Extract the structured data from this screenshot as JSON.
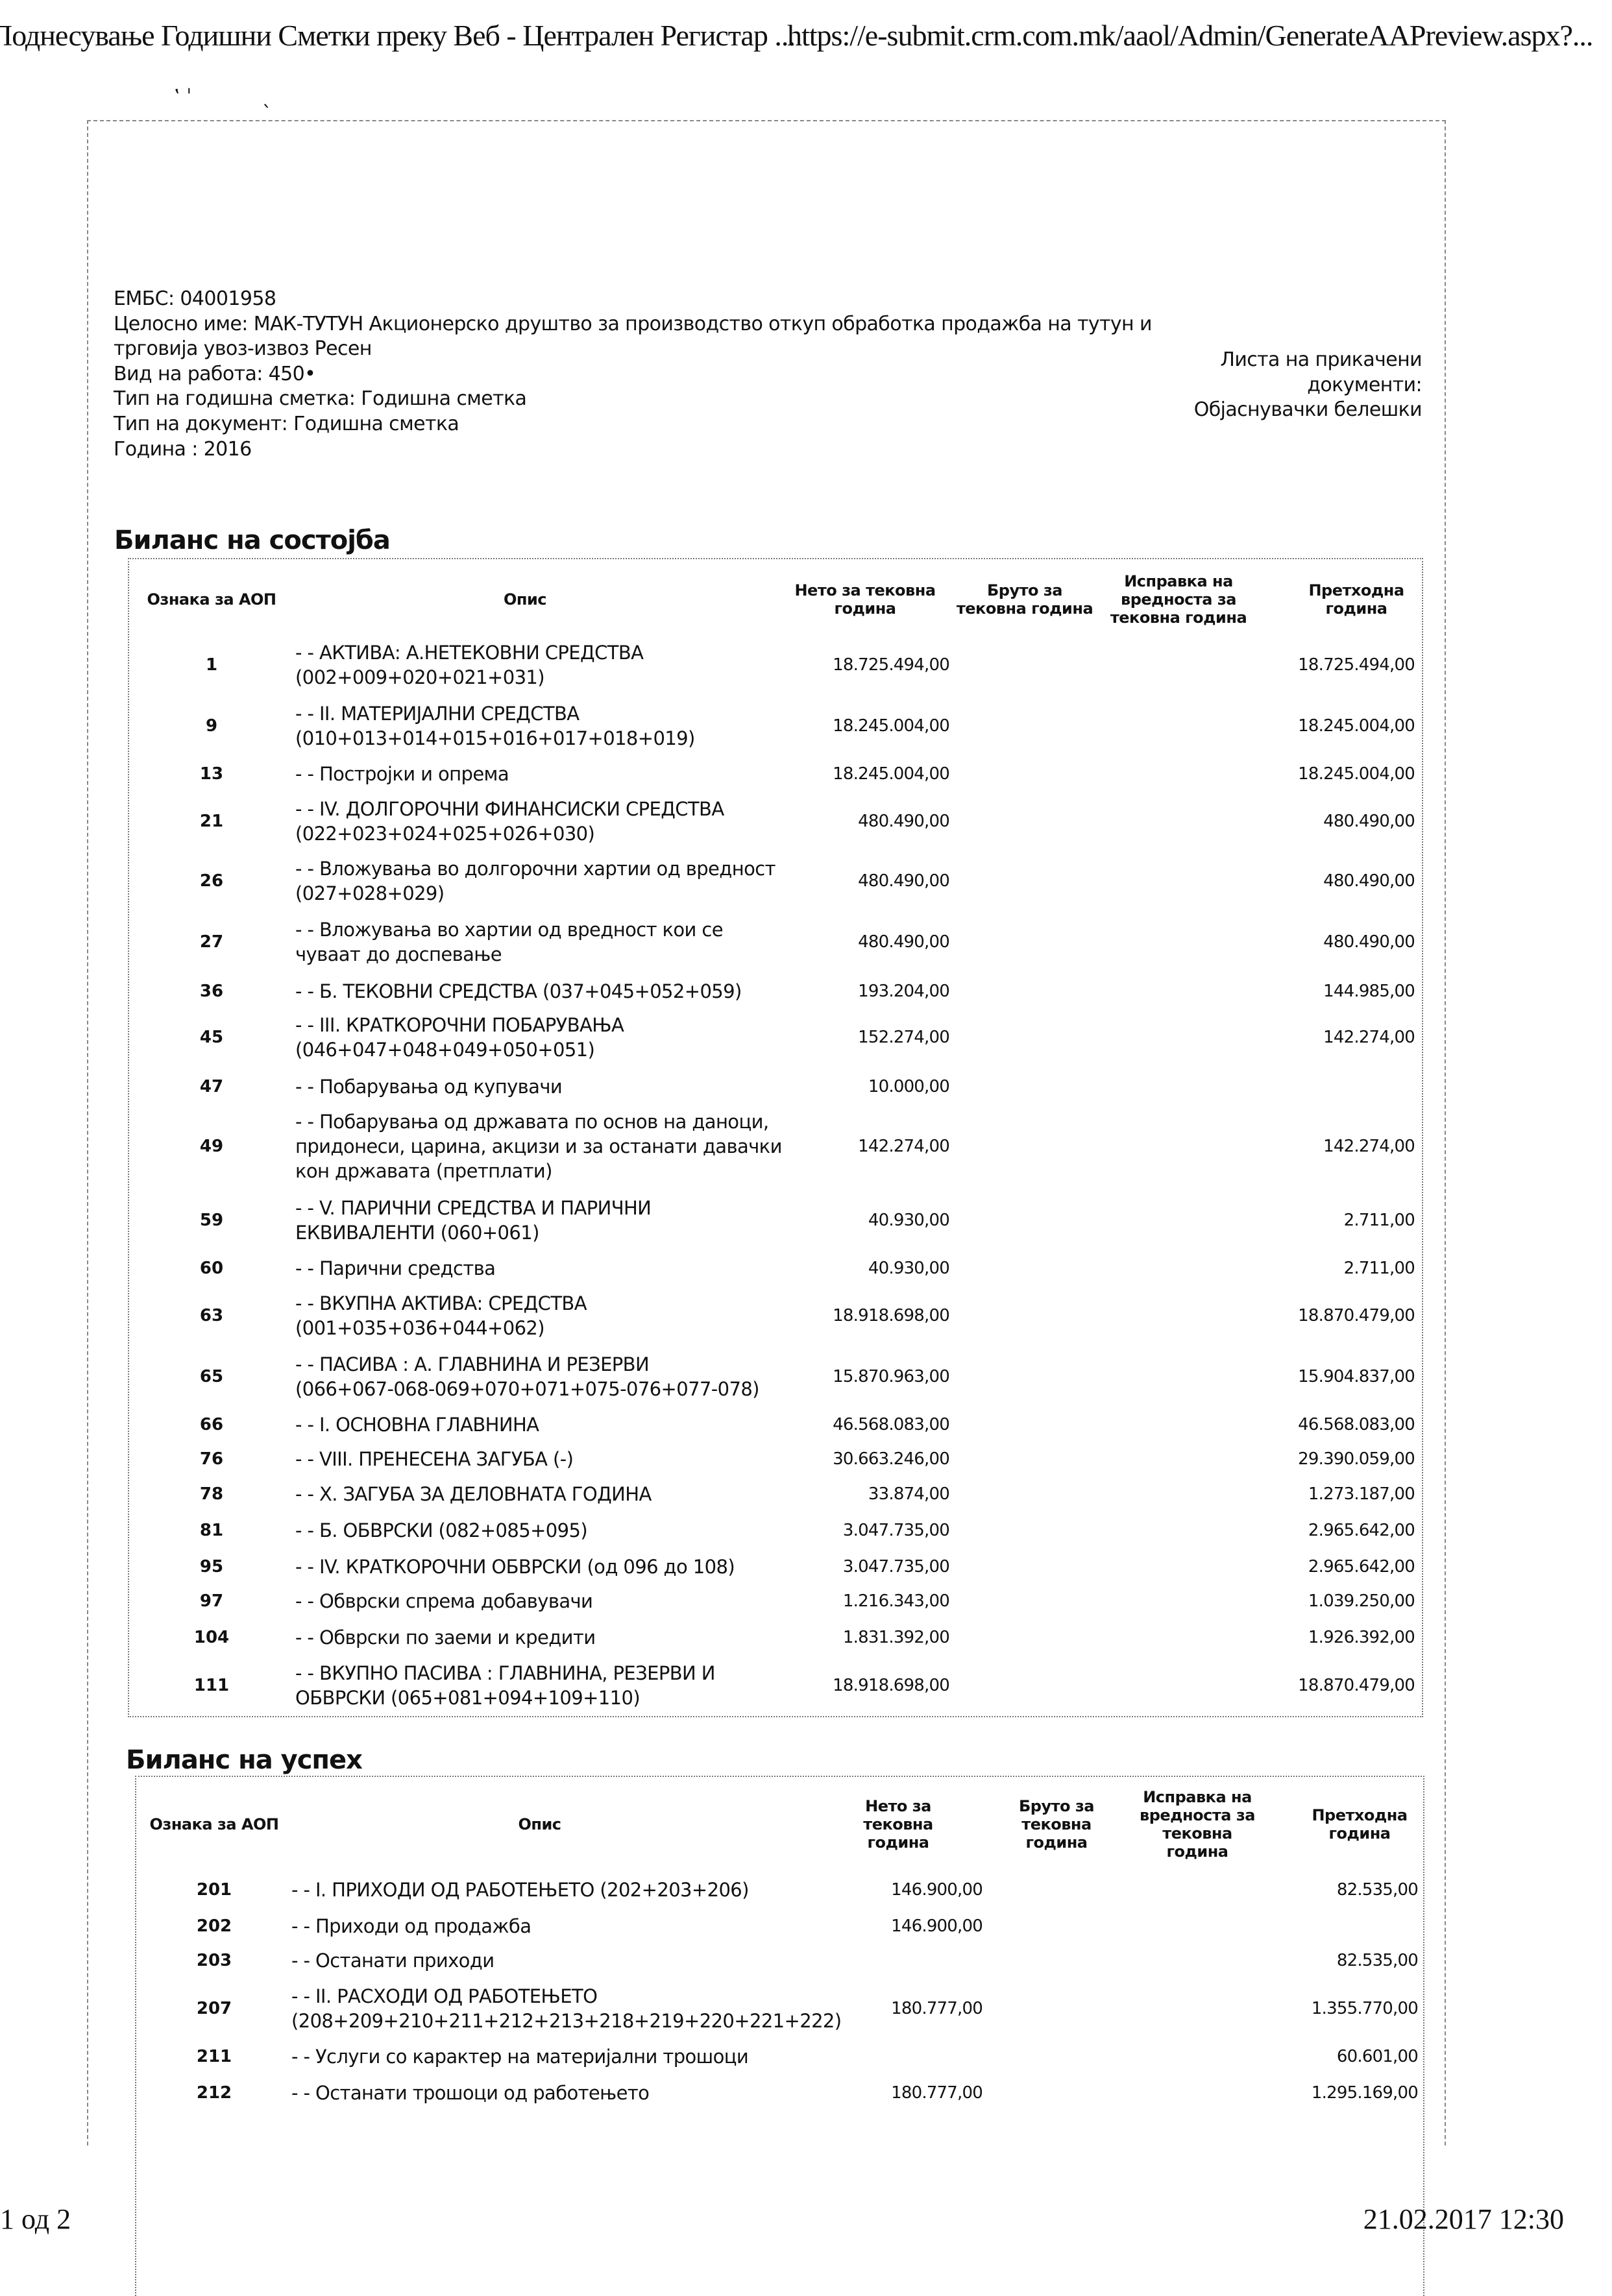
{
  "header": {
    "title": "Поднесување Годишни Сметки преку Веб - Централен Регистар ...",
    "url": "https://e-submit.crm.com.mk/aaol/Admin/GenerateAAPreview.aspx?..."
  },
  "info": {
    "embs": "ЕМБС: 04001958",
    "full_name_line1": "Целосно име: МАК-ТУТУН Акционерско друштво за производство откуп обработка продажба на тутун и",
    "full_name_line2": "трговија увоз-извоз Ресен",
    "activity": "Вид на работа: 450•",
    "account_type": "Тип на годишна сметка: Годишна сметка",
    "document_type": "Тип на документ: Годишна сметка",
    "year": "Година : 2016"
  },
  "attachments": {
    "label_line1": "Листа на прикачени",
    "label_line2": "документи:",
    "item": "Објаснувачки белешки"
  },
  "balance_sheet": {
    "title": "Биланс на состојба",
    "columns": [
      "Ознака за АОП",
      "Опис",
      "Нето за тековна\nгодина",
      "Бруто за\nтековна година",
      "Исправка на\nвредноста за\nтековна година",
      "Претходна\nгодина"
    ],
    "rows": [
      {
        "aop": "1",
        "opis": "- - АКТИВА: А.НЕТЕКОВНИ СРЕДСТВА\n(002+009+020+021+031)",
        "neto": "18.725.494,00",
        "bruto": "",
        "ispravka": "",
        "prethodna": "18.725.494,00"
      },
      {
        "aop": "9",
        "opis": "- - II. МАТЕРИЈАЛНИ СРЕДСТВА\n(010+013+014+015+016+017+018+019)",
        "neto": "18.245.004,00",
        "bruto": "",
        "ispravka": "",
        "prethodna": "18.245.004,00"
      },
      {
        "aop": "13",
        "opis": "- - Постројки и опрема",
        "neto": "18.245.004,00",
        "bruto": "",
        "ispravka": "",
        "prethodna": "18.245.004,00"
      },
      {
        "aop": "21",
        "opis": "- - IV. ДОЛГОРОЧНИ ФИНАНСИСКИ СРЕДСТВА\n(022+023+024+025+026+030)",
        "neto": "480.490,00",
        "bruto": "",
        "ispravka": "",
        "prethodna": "480.490,00"
      },
      {
        "aop": "26",
        "opis": "- - Вложувања во долгорочни хартии од вредност\n(027+028+029)",
        "neto": "480.490,00",
        "bruto": "",
        "ispravka": "",
        "prethodna": "480.490,00"
      },
      {
        "aop": "27",
        "opis": "- - Вложувања во хартии од вредност кои се\nчуваат до доспевање",
        "neto": "480.490,00",
        "bruto": "",
        "ispravka": "",
        "prethodna": "480.490,00"
      },
      {
        "aop": "36",
        "opis": "- - Б. ТЕКОВНИ СРЕДСТВА (037+045+052+059)",
        "neto": "193.204,00",
        "bruto": "",
        "ispravka": "",
        "prethodna": "144.985,00"
      },
      {
        "aop": "45",
        "opis": "- - III. КРАТКОРОЧНИ ПОБАРУВАЊА\n(046+047+048+049+050+051)",
        "neto": "152.274,00",
        "bruto": "",
        "ispravka": "",
        "prethodna": "142.274,00"
      },
      {
        "aop": "47",
        "opis": "- - Побарувања од купувачи",
        "neto": "10.000,00",
        "bruto": "",
        "ispravka": "",
        "prethodna": ""
      },
      {
        "aop": "49",
        "opis": "- - Побарувања од државата по основ на даноци,\nпридонеси, царина, акцизи и за останати давачки\nкон државата (претплати)",
        "neto": "142.274,00",
        "bruto": "",
        "ispravka": "",
        "prethodna": "142.274,00"
      },
      {
        "aop": "59",
        "opis": "- - V. ПАРИЧНИ СРЕДСТВА И ПАРИЧНИ\nЕКВИВАЛЕНТИ (060+061)",
        "neto": "40.930,00",
        "bruto": "",
        "ispravka": "",
        "prethodna": "2.711,00"
      },
      {
        "aop": "60",
        "opis": "- - Парични средства",
        "neto": "40.930,00",
        "bruto": "",
        "ispravka": "",
        "prethodna": "2.711,00"
      },
      {
        "aop": "63",
        "opis": "- - ВКУПНА АКТИВА: СРЕДСТВА\n(001+035+036+044+062)",
        "neto": "18.918.698,00",
        "bruto": "",
        "ispravka": "",
        "prethodna": "18.870.479,00"
      },
      {
        "aop": "65",
        "opis": "- - ПАСИВА : А. ГЛАВНИНА И РЕЗЕРВИ\n(066+067-068-069+070+071+075-076+077-078)",
        "neto": "15.870.963,00",
        "bruto": "",
        "ispravka": "",
        "prethodna": "15.904.837,00"
      },
      {
        "aop": "66",
        "opis": "- - I. ОСНОВНА ГЛАВНИНА",
        "neto": "46.568.083,00",
        "bruto": "",
        "ispravka": "",
        "prethodna": "46.568.083,00"
      },
      {
        "aop": "76",
        "opis": "- - VIII. ПРЕНЕСЕНА ЗАГУБА (-)",
        "neto": "30.663.246,00",
        "bruto": "",
        "ispravka": "",
        "prethodna": "29.390.059,00"
      },
      {
        "aop": "78",
        "opis": "- - X. ЗАГУБА ЗА ДЕЛОВНАТА ГОДИНА",
        "neto": "33.874,00",
        "bruto": "",
        "ispravka": "",
        "prethodna": "1.273.187,00"
      },
      {
        "aop": "81",
        "opis": "- - Б. ОБВРСКИ (082+085+095)",
        "neto": "3.047.735,00",
        "bruto": "",
        "ispravka": "",
        "prethodna": "2.965.642,00"
      },
      {
        "aop": "95",
        "opis": "- - IV. КРАТКОРОЧНИ ОБВРСКИ (од 096 до 108)",
        "neto": "3.047.735,00",
        "bruto": "",
        "ispravka": "",
        "prethodna": "2.965.642,00"
      },
      {
        "aop": "97",
        "opis": "- - Обврски спрема добавувачи",
        "neto": "1.216.343,00",
        "bruto": "",
        "ispravka": "",
        "prethodna": "1.039.250,00"
      },
      {
        "aop": "104",
        "opis": "- - Обврски по заеми и кредити",
        "neto": "1.831.392,00",
        "bruto": "",
        "ispravka": "",
        "prethodna": "1.926.392,00"
      },
      {
        "aop": "111",
        "opis": "- - ВКУПНО ПАСИВА : ГЛАВНИНА, РЕЗЕРВИ И\nОБВРСКИ (065+081+094+109+110)",
        "neto": "18.918.698,00",
        "bruto": "",
        "ispravka": "",
        "prethodna": "18.870.479,00"
      }
    ]
  },
  "income_statement": {
    "title": "Биланс на успех",
    "columns": [
      "Ознака за АОП",
      "Опис",
      "Нето за\nтековна\nгодина",
      "Бруто за\nтековна\nгодина",
      "Исправка на\nвредноста за\nтековна\nгодина",
      "Претходна\nгодина"
    ],
    "rows": [
      {
        "aop": "201",
        "opis": "- - I. ПРИХОДИ ОД РАБОТЕЊЕТО (202+203+206)",
        "neto": "146.900,00",
        "bruto": "",
        "ispravka": "",
        "prethodna": "82.535,00"
      },
      {
        "aop": "202",
        "opis": "- - Приходи од продажба",
        "neto": "146.900,00",
        "bruto": "",
        "ispravka": "",
        "prethodna": ""
      },
      {
        "aop": "203",
        "opis": "- - Останати приходи",
        "neto": "",
        "bruto": "",
        "ispravka": "",
        "prethodna": "82.535,00"
      },
      {
        "aop": "207",
        "opis": "- - II. РАСХОДИ ОД РАБОТЕЊЕТО\n(208+209+210+211+212+213+218+219+220+221+222)",
        "neto": "180.777,00",
        "bruto": "",
        "ispravka": "",
        "prethodna": "1.355.770,00"
      },
      {
        "aop": "211",
        "opis": "- - Услуги со карактер на материјални трошоци",
        "neto": "",
        "bruto": "",
        "ispravka": "",
        "prethodna": "60.601,00"
      },
      {
        "aop": "212",
        "opis": "- - Останати трошоци од работењето",
        "neto": "180.777,00",
        "bruto": "",
        "ispravka": "",
        "prethodna": "1.295.169,00"
      }
    ]
  },
  "footer": {
    "page": "1 од 2",
    "datetime": "21.02.2017 12:30"
  }
}
